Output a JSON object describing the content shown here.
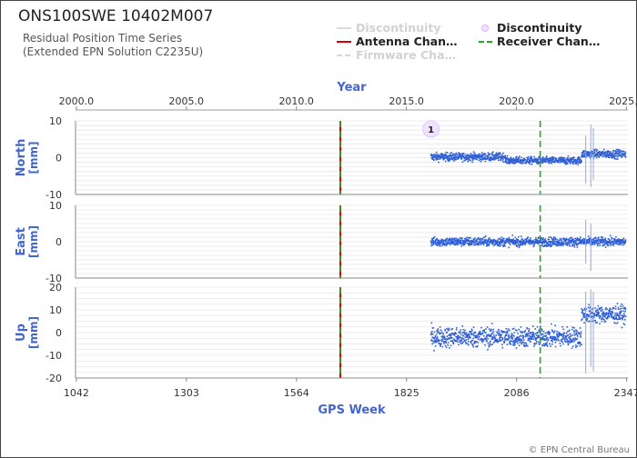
{
  "header": {
    "title": "ONS100SWE 10402M007",
    "subtitle_line1": "Residual Position Time Series",
    "subtitle_line2": "(Extended EPN Solution C2235U)"
  },
  "legend": {
    "items": [
      {
        "label": "Discontinuity",
        "style": "line-faded",
        "color": "#d9d9d9"
      },
      {
        "label": "Discontinuity",
        "style": "marker",
        "color": "#d9b3ff"
      },
      {
        "label": "Antenna Chan…",
        "style": "line",
        "color": "#dd0000"
      },
      {
        "label": "Receiver Chan…",
        "style": "dashed",
        "color": "#22aa22"
      },
      {
        "label": "Firmware Cha…",
        "style": "dashed-faded",
        "color": "#d9d9d9"
      }
    ]
  },
  "footer": {
    "copyright": "© EPN Central Bureau"
  },
  "chart_data": {
    "type": "scatter",
    "x_axis_top": {
      "label": "Year",
      "ticks": [
        2000.0,
        2005.0,
        2010.0,
        2015.0,
        2020.0,
        2025.0
      ],
      "tick_labels": [
        "2000.0",
        "2005.0",
        "2010.0",
        "2015.0",
        "2020.0",
        "2025.0"
      ]
    },
    "x_axis_bottom": {
      "label": "GPS Week",
      "ticks": [
        1042,
        1303,
        1564,
        1825,
        2086,
        2347
      ],
      "tick_labels": [
        "1042",
        "1303",
        "1564",
        "1825",
        "2086",
        "2347"
      ]
    },
    "xlim": [
      1040,
      2350
    ],
    "data_range": [
      1883,
      2345
    ],
    "events": {
      "antenna_change": [
        1668
      ],
      "receiver_change": [
        1668,
        2142
      ],
      "discontinuity_marker": {
        "week": 1883,
        "label": "1"
      }
    },
    "panels": [
      {
        "name": "North",
        "unit": "[mm]",
        "ylim": [
          -10,
          10
        ],
        "yticks": [
          10,
          0,
          -10
        ],
        "segments": [
          {
            "start": 1883,
            "end": 2060,
            "mean": 0.2,
            "spread": 1.0
          },
          {
            "start": 2060,
            "end": 2240,
            "mean": -0.8,
            "spread": 0.9
          },
          {
            "start": 2240,
            "end": 2345,
            "mean": 1.0,
            "spread": 1.0
          }
        ],
        "outliers": [
          {
            "week": 2250,
            "low": -7,
            "high": 6
          },
          {
            "week": 2262,
            "low": -8,
            "high": 9
          },
          {
            "week": 2268,
            "low": -6,
            "high": 8
          }
        ]
      },
      {
        "name": "East",
        "unit": "[mm]",
        "ylim": [
          -10,
          10
        ],
        "yticks": [
          10,
          0,
          -10
        ],
        "segments": [
          {
            "start": 1883,
            "end": 2345,
            "mean": 0.0,
            "spread": 1.1
          }
        ],
        "outliers": [
          {
            "week": 2250,
            "low": -6,
            "high": 6
          },
          {
            "week": 2262,
            "low": -8,
            "high": 5
          }
        ]
      },
      {
        "name": "Up",
        "unit": "[mm]",
        "ylim": [
          -20,
          20
        ],
        "yticks": [
          20,
          10,
          0,
          -10,
          -20
        ],
        "segments": [
          {
            "start": 1883,
            "end": 2240,
            "mean": -2.0,
            "spread": 4.0
          },
          {
            "start": 2240,
            "end": 2345,
            "mean": 8.0,
            "spread": 3.5
          }
        ],
        "outliers": [
          {
            "week": 2250,
            "low": -18,
            "high": 18
          },
          {
            "week": 2262,
            "low": -15,
            "high": 19
          },
          {
            "week": 2268,
            "low": -17,
            "high": 18
          }
        ]
      }
    ],
    "colors": {
      "points": "#2f5fd6",
      "axis_text": "#4466cc",
      "grid": "#e6e6e6"
    }
  }
}
